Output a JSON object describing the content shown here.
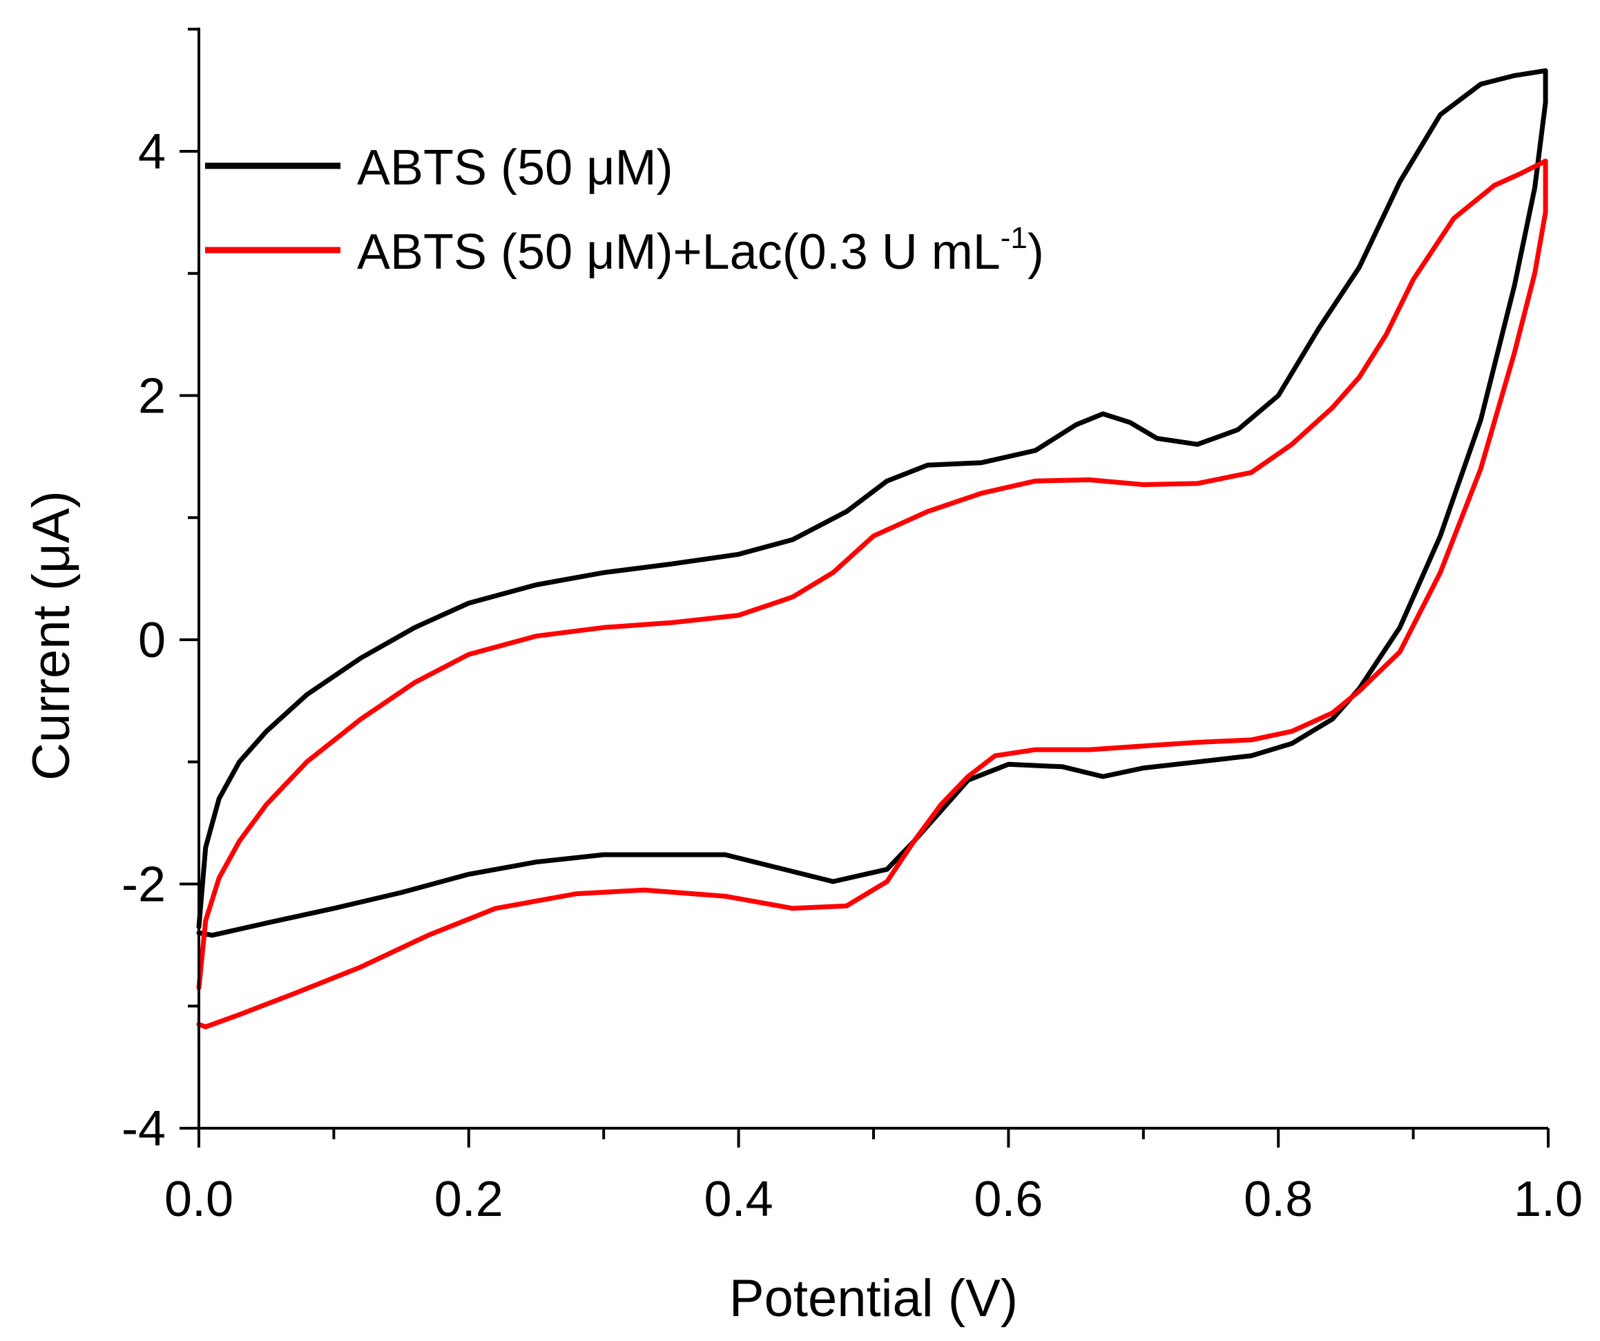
{
  "chart_data": {
    "type": "line",
    "title": "",
    "xlabel": "Potential (V)",
    "ylabel": "Current (μA)",
    "xlim": [
      0.0,
      1.0
    ],
    "ylim": [
      -4,
      5
    ],
    "x_ticks": [
      0.0,
      0.2,
      0.4,
      0.6,
      0.8,
      1.0
    ],
    "x_tick_labels": [
      "0.0",
      "0.2",
      "0.4",
      "0.6",
      "0.8",
      "1.0"
    ],
    "y_ticks": [
      -4,
      -2,
      0,
      2,
      4
    ],
    "y_tick_labels": [
      "-4",
      "-2",
      "0",
      "2",
      "4"
    ],
    "grid": false,
    "legend_position": "top-left",
    "series": [
      {
        "name": "ABTS (50 μM)",
        "color": "#000000",
        "points": [
          [
            0.0,
            -2.35
          ],
          [
            0.005,
            -1.7
          ],
          [
            0.015,
            -1.3
          ],
          [
            0.03,
            -1.0
          ],
          [
            0.05,
            -0.75
          ],
          [
            0.08,
            -0.45
          ],
          [
            0.12,
            -0.15
          ],
          [
            0.16,
            0.1
          ],
          [
            0.2,
            0.3
          ],
          [
            0.25,
            0.45
          ],
          [
            0.3,
            0.55
          ],
          [
            0.35,
            0.62
          ],
          [
            0.4,
            0.7
          ],
          [
            0.44,
            0.82
          ],
          [
            0.48,
            1.05
          ],
          [
            0.51,
            1.3
          ],
          [
            0.54,
            1.43
          ],
          [
            0.58,
            1.45
          ],
          [
            0.62,
            1.55
          ],
          [
            0.65,
            1.76
          ],
          [
            0.67,
            1.85
          ],
          [
            0.69,
            1.78
          ],
          [
            0.71,
            1.65
          ],
          [
            0.74,
            1.6
          ],
          [
            0.77,
            1.72
          ],
          [
            0.8,
            2.0
          ],
          [
            0.83,
            2.55
          ],
          [
            0.86,
            3.05
          ],
          [
            0.89,
            3.75
          ],
          [
            0.92,
            4.3
          ],
          [
            0.95,
            4.55
          ],
          [
            0.975,
            4.62
          ],
          [
            0.998,
            4.66
          ],
          [
            0.998,
            4.4
          ],
          [
            0.99,
            3.7
          ],
          [
            0.975,
            2.9
          ],
          [
            0.95,
            1.8
          ],
          [
            0.92,
            0.85
          ],
          [
            0.89,
            0.1
          ],
          [
            0.86,
            -0.4
          ],
          [
            0.84,
            -0.65
          ],
          [
            0.81,
            -0.85
          ],
          [
            0.78,
            -0.95
          ],
          [
            0.74,
            -1.0
          ],
          [
            0.7,
            -1.05
          ],
          [
            0.67,
            -1.12
          ],
          [
            0.64,
            -1.04
          ],
          [
            0.6,
            -1.02
          ],
          [
            0.57,
            -1.15
          ],
          [
            0.55,
            -1.4
          ],
          [
            0.53,
            -1.65
          ],
          [
            0.51,
            -1.88
          ],
          [
            0.47,
            -1.98
          ],
          [
            0.43,
            -1.87
          ],
          [
            0.39,
            -1.76
          ],
          [
            0.35,
            -1.76
          ],
          [
            0.3,
            -1.76
          ],
          [
            0.25,
            -1.82
          ],
          [
            0.2,
            -1.92
          ],
          [
            0.15,
            -2.07
          ],
          [
            0.1,
            -2.2
          ],
          [
            0.05,
            -2.32
          ],
          [
            0.01,
            -2.42
          ],
          [
            0.0,
            -2.4
          ]
        ]
      },
      {
        "name": "ABTS (50 μM)+Lac(0.3 U mL-1)",
        "color": "#ff0000",
        "points": [
          [
            0.0,
            -2.85
          ],
          [
            0.005,
            -2.3
          ],
          [
            0.015,
            -1.95
          ],
          [
            0.03,
            -1.65
          ],
          [
            0.05,
            -1.35
          ],
          [
            0.08,
            -1.0
          ],
          [
            0.12,
            -0.65
          ],
          [
            0.16,
            -0.35
          ],
          [
            0.2,
            -0.12
          ],
          [
            0.25,
            0.03
          ],
          [
            0.3,
            0.1
          ],
          [
            0.35,
            0.14
          ],
          [
            0.4,
            0.2
          ],
          [
            0.44,
            0.35
          ],
          [
            0.47,
            0.55
          ],
          [
            0.5,
            0.85
          ],
          [
            0.54,
            1.05
          ],
          [
            0.58,
            1.2
          ],
          [
            0.62,
            1.3
          ],
          [
            0.66,
            1.31
          ],
          [
            0.7,
            1.27
          ],
          [
            0.74,
            1.28
          ],
          [
            0.78,
            1.37
          ],
          [
            0.81,
            1.6
          ],
          [
            0.84,
            1.9
          ],
          [
            0.86,
            2.15
          ],
          [
            0.88,
            2.5
          ],
          [
            0.9,
            2.95
          ],
          [
            0.93,
            3.45
          ],
          [
            0.96,
            3.72
          ],
          [
            0.98,
            3.82
          ],
          [
            0.998,
            3.92
          ],
          [
            0.998,
            3.5
          ],
          [
            0.99,
            3.0
          ],
          [
            0.975,
            2.35
          ],
          [
            0.95,
            1.4
          ],
          [
            0.92,
            0.55
          ],
          [
            0.89,
            -0.1
          ],
          [
            0.86,
            -0.42
          ],
          [
            0.84,
            -0.6
          ],
          [
            0.81,
            -0.75
          ],
          [
            0.78,
            -0.82
          ],
          [
            0.74,
            -0.84
          ],
          [
            0.7,
            -0.87
          ],
          [
            0.66,
            -0.9
          ],
          [
            0.62,
            -0.9
          ],
          [
            0.59,
            -0.95
          ],
          [
            0.57,
            -1.12
          ],
          [
            0.55,
            -1.35
          ],
          [
            0.53,
            -1.65
          ],
          [
            0.51,
            -1.98
          ],
          [
            0.48,
            -2.18
          ],
          [
            0.44,
            -2.2
          ],
          [
            0.39,
            -2.1
          ],
          [
            0.33,
            -2.05
          ],
          [
            0.28,
            -2.08
          ],
          [
            0.22,
            -2.2
          ],
          [
            0.17,
            -2.42
          ],
          [
            0.12,
            -2.68
          ],
          [
            0.07,
            -2.9
          ],
          [
            0.03,
            -3.07
          ],
          [
            0.005,
            -3.17
          ],
          [
            0.0,
            -3.15
          ]
        ]
      }
    ]
  },
  "legend": {
    "items": [
      {
        "color": "#000000",
        "label": "ABTS (50 μM)"
      },
      {
        "color": "#ff0000",
        "label_main": "ABTS (50 μM)+Lac(0.3 U mL",
        "label_sup": "-1",
        "label_end": ")"
      }
    ]
  }
}
